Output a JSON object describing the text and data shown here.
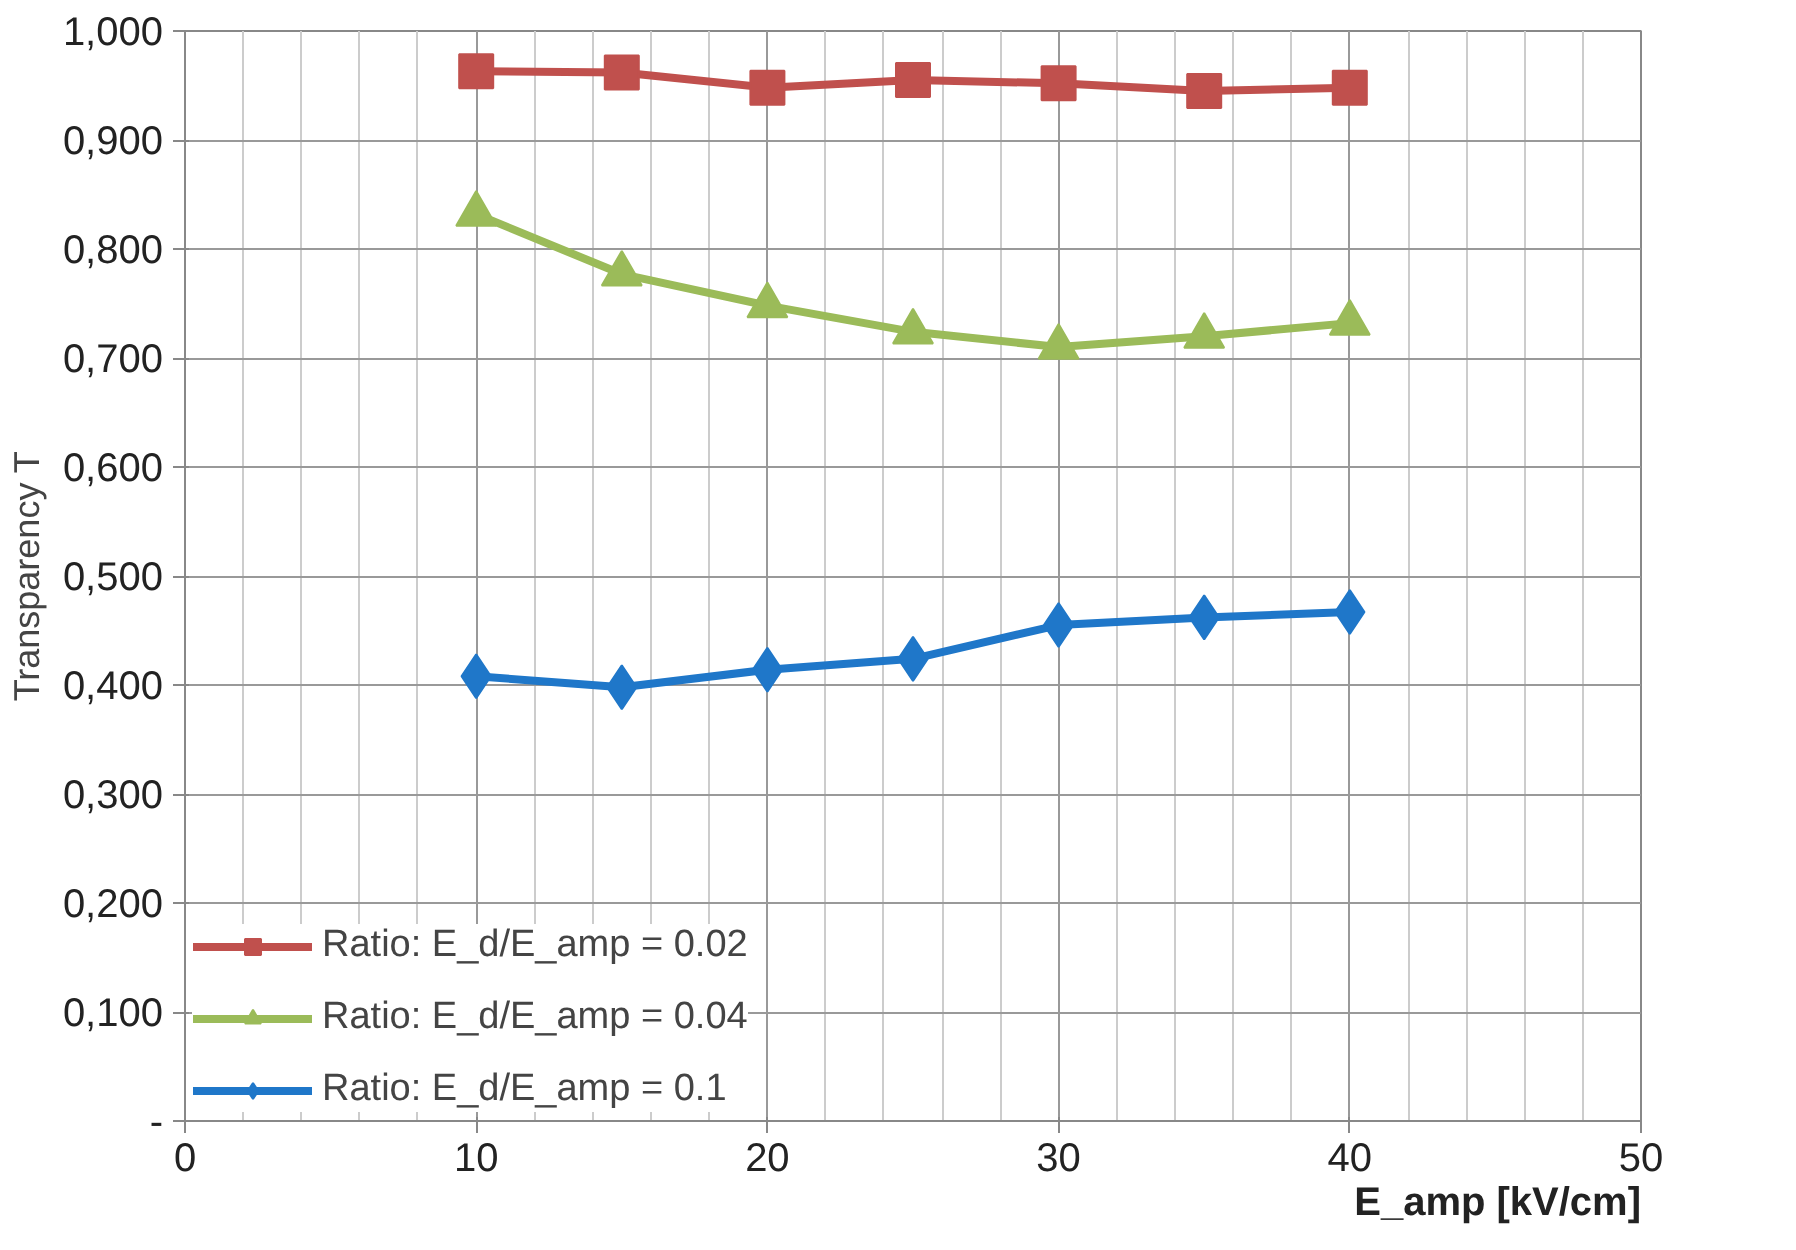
{
  "chart_data": {
    "type": "line",
    "xlabel": "E_amp [kV/cm]",
    "ylabel": "Transparency T",
    "x": [
      10,
      15,
      20,
      25,
      30,
      35,
      40
    ],
    "series": [
      {
        "name": "Ratio: E_d/E_amp = 0.02",
        "color": "#c0504d",
        "marker": "square",
        "values": [
          0.963,
          0.962,
          0.948,
          0.955,
          0.952,
          0.945,
          0.948
        ]
      },
      {
        "name": "Ratio: E_d/E_amp = 0.04",
        "color": "#9bbb59",
        "marker": "triangle",
        "values": [
          0.832,
          0.777,
          0.748,
          0.724,
          0.71,
          0.72,
          0.732
        ]
      },
      {
        "name": "Ratio: E_d/E_amp = 0.1",
        "color": "#1f77c9",
        "marker": "diamond",
        "values": [
          0.408,
          0.398,
          0.414,
          0.424,
          0.455,
          0.462,
          0.467
        ]
      }
    ],
    "xlim": [
      0,
      50
    ],
    "xticks": [
      0,
      10,
      20,
      30,
      40,
      50
    ],
    "ylim": [
      0,
      1.0
    ],
    "yticks": [
      {
        "value": 0,
        "label": "-"
      },
      {
        "value": 0.1,
        "label": "0,100"
      },
      {
        "value": 0.2,
        "label": "0,200"
      },
      {
        "value": 0.3,
        "label": "0,300"
      },
      {
        "value": 0.4,
        "label": "0,400"
      },
      {
        "value": 0.5,
        "label": "0,500"
      },
      {
        "value": 0.6,
        "label": "0,600"
      },
      {
        "value": 0.7,
        "label": "0,700"
      },
      {
        "value": 0.8,
        "label": "0,800"
      },
      {
        "value": 0.9,
        "label": "0,900"
      },
      {
        "value": 1.0,
        "label": "1,000"
      }
    ],
    "grid": true,
    "legend": "bottom left",
    "line_style": "solid"
  }
}
